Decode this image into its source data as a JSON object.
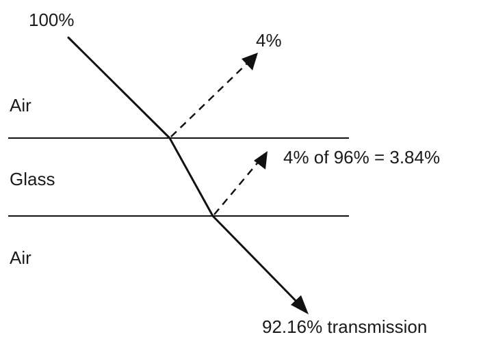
{
  "incident_label": "100%",
  "first_reflection_label": "4%",
  "second_reflection_label": "4% of 96% = 3.84%",
  "transmission_label": "92.16% transmission",
  "media": {
    "top": "Air",
    "middle": "Glass",
    "bottom": "Air"
  }
}
